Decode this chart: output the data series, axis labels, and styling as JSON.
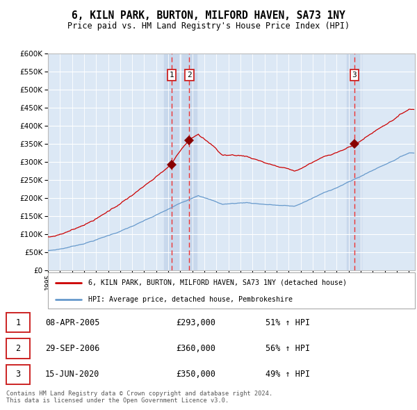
{
  "title": "6, KILN PARK, BURTON, MILFORD HAVEN, SA73 1NY",
  "subtitle": "Price paid vs. HM Land Registry's House Price Index (HPI)",
  "legend_line1": "6, KILN PARK, BURTON, MILFORD HAVEN, SA73 1NY (detached house)",
  "legend_line2": "HPI: Average price, detached house, Pembrokeshire",
  "transactions": [
    {
      "label": "1",
      "date_num": 2005.27,
      "price": 293000,
      "hpi_pct": "51% ↑ HPI",
      "date_str": "08-APR-2005"
    },
    {
      "label": "2",
      "date_num": 2006.75,
      "price": 360000,
      "hpi_pct": "56% ↑ HPI",
      "date_str": "29-SEP-2006"
    },
    {
      "label": "3",
      "date_num": 2020.46,
      "price": 350000,
      "hpi_pct": "49% ↑ HPI",
      "date_str": "15-JUN-2020"
    }
  ],
  "footer": "Contains HM Land Registry data © Crown copyright and database right 2024.\nThis data is licensed under the Open Government Licence v3.0.",
  "hpi_color": "#6699cc",
  "price_color": "#cc0000",
  "background_chart": "#dce8f5",
  "background_shade": "#c8d8ec",
  "grid_color": "#ffffff",
  "dashed_line_color": "#ee3333",
  "ylim": [
    0,
    600000
  ],
  "yticks": [
    0,
    50000,
    100000,
    150000,
    200000,
    250000,
    300000,
    350000,
    400000,
    450000,
    500000,
    550000,
    600000
  ],
  "xmin": 1995,
  "xmax": 2025.5
}
